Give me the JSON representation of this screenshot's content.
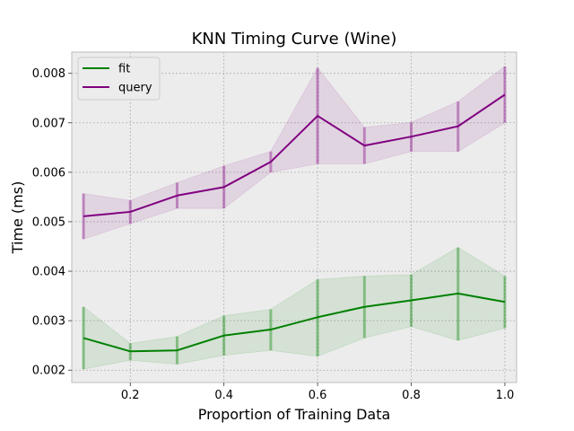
{
  "chart_data": {
    "type": "line",
    "title": "KNN Timing Curve (Wine)",
    "xlabel": "Proportion of Training Data",
    "ylabel": "Time (ms)",
    "xlim": [
      0.075,
      1.025
    ],
    "ylim": [
      0.00175,
      0.00843
    ],
    "xticks": [
      0.2,
      0.4,
      0.6,
      0.8,
      1.0
    ],
    "xtick_labels": [
      "0.2",
      "0.4",
      "0.6",
      "0.8",
      "1.0"
    ],
    "yticks": [
      0.002,
      0.003,
      0.004,
      0.005,
      0.006,
      0.007,
      0.008
    ],
    "ytick_labels": [
      "0.002",
      "0.003",
      "0.004",
      "0.005",
      "0.006",
      "0.007",
      "0.008"
    ],
    "grid": true,
    "legend": "top-left",
    "x": [
      0.1,
      0.2,
      0.3,
      0.4,
      0.5,
      0.6,
      0.7,
      0.8,
      0.9,
      1.0
    ],
    "series": [
      {
        "name": "fit",
        "color": "#008000",
        "values": [
          0.00265,
          0.00238,
          0.0024,
          0.0027,
          0.00282,
          0.00307,
          0.00328,
          0.00341,
          0.00355,
          0.00338
        ],
        "lower": [
          0.00202,
          0.0022,
          0.00212,
          0.0023,
          0.0024,
          0.00228,
          0.00265,
          0.00288,
          0.0026,
          0.00285
        ],
        "upper": [
          0.00328,
          0.00254,
          0.00268,
          0.0031,
          0.00323,
          0.00383,
          0.0039,
          0.00393,
          0.00448,
          0.0039
        ]
      },
      {
        "name": "query",
        "color": "#800080",
        "values": [
          0.00511,
          0.0052,
          0.00553,
          0.0057,
          0.00621,
          0.00714,
          0.00654,
          0.00672,
          0.00693,
          0.00757
        ],
        "lower": [
          0.00465,
          0.00496,
          0.00527,
          0.00527,
          0.006,
          0.00617,
          0.00617,
          0.00642,
          0.00642,
          0.007
        ],
        "upper": [
          0.00557,
          0.00543,
          0.00579,
          0.00613,
          0.00642,
          0.00811,
          0.00691,
          0.00701,
          0.00743,
          0.00814
        ]
      }
    ]
  }
}
